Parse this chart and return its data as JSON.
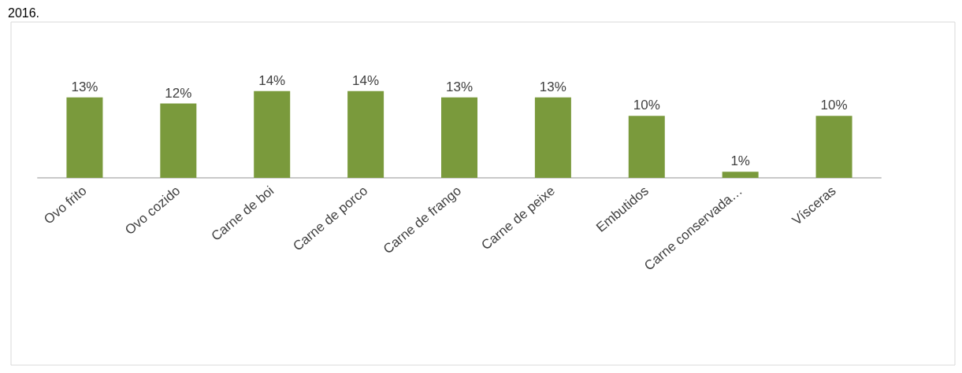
{
  "chart_data": {
    "type": "bar",
    "annotations": [
      "2016."
    ],
    "categories": [
      "Ovo frito",
      "Ovo cozido",
      "Carne de boi",
      "Carne de porco",
      "Carne de frango",
      "Carne de peixe",
      "Embutidos",
      "Carne conservada…",
      "Vísceras"
    ],
    "values": [
      13,
      12,
      14,
      14,
      13,
      13,
      10,
      1,
      10
    ],
    "value_labels": [
      "13%",
      "12%",
      "14%",
      "14%",
      "13%",
      "13%",
      "10%",
      "1%",
      "10%"
    ],
    "color": "#7a9a3c"
  }
}
